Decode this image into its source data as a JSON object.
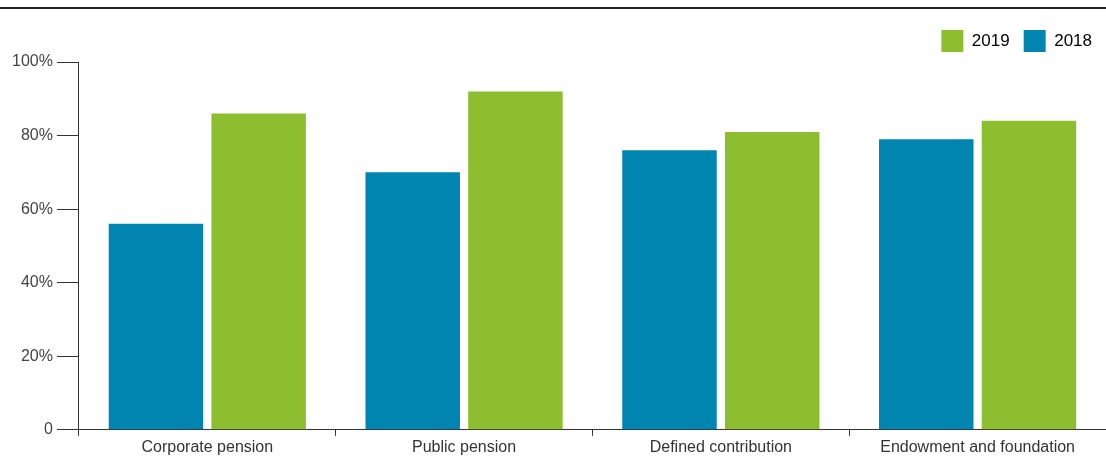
{
  "chart_data": {
    "type": "bar",
    "categories": [
      "Corporate pension",
      "Public pension",
      "Defined contribution",
      "Endowment and foundation"
    ],
    "series": [
      {
        "name": "2018",
        "color": "#0085b0",
        "values": [
          56,
          70,
          76,
          79
        ]
      },
      {
        "name": "2019",
        "color": "#8dbe2f",
        "values": [
          86,
          92,
          81,
          84
        ]
      }
    ],
    "ylim": [
      0,
      100
    ],
    "yticks": [
      {
        "value": 0,
        "label": "0"
      },
      {
        "value": 20,
        "label": "20%"
      },
      {
        "value": 40,
        "label": "40%"
      },
      {
        "value": 60,
        "label": "60%"
      },
      {
        "value": 80,
        "label": "80%"
      },
      {
        "value": 100,
        "label": "100%"
      }
    ],
    "grid": false,
    "legend": "top right"
  }
}
